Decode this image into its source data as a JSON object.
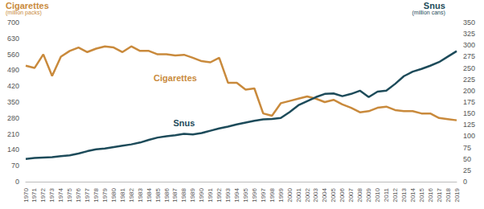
{
  "chart_data": {
    "type": "line",
    "ylabel": "Cigarettes",
    "yunit": "(million packs)",
    "y2label": "Snus",
    "y2unit": "(million cans)",
    "categories": [
      "1970",
      "1971",
      "1972",
      "1973",
      "1974",
      "1975",
      "1976",
      "1977",
      "1978",
      "1979",
      "1980",
      "1981",
      "1982",
      "1983",
      "1984",
      "1985",
      "1986",
      "1987",
      "1988",
      "1989",
      "1990",
      "1991",
      "1992",
      "1993",
      "1994",
      "1995",
      "1996",
      "1997",
      "1998",
      "1999",
      "2000",
      "2001",
      "2002",
      "2003",
      "2004",
      "2005",
      "2006",
      "2007",
      "2008",
      "2009",
      "2010",
      "2011",
      "2012",
      "2013",
      "2014",
      "2015",
      "2016",
      "2017",
      "2018",
      "2019"
    ],
    "series": [
      {
        "name": "Cigarettes",
        "color": "#c98a3c",
        "values": [
          510,
          500,
          560,
          465,
          550,
          575,
          590,
          570,
          585,
          595,
          590,
          570,
          595,
          575,
          575,
          560,
          560,
          555,
          558,
          545,
          530,
          525,
          545,
          435,
          435,
          405,
          410,
          300,
          290,
          345,
          355,
          365,
          375,
          365,
          350,
          360,
          340,
          325,
          305,
          310,
          325,
          330,
          315,
          310,
          310,
          300,
          300,
          280,
          275,
          270
        ]
      },
      {
        "name": "Snus",
        "color": "#1d4b5a",
        "axis": "y2",
        "values": [
          50,
          52,
          53,
          54,
          56,
          58,
          62,
          67,
          71,
          73,
          76,
          79,
          82,
          86,
          92,
          97,
          100,
          102,
          105,
          104,
          107,
          112,
          117,
          121,
          126,
          130,
          134,
          137,
          138,
          140,
          153,
          168,
          177,
          186,
          193,
          194,
          188,
          193,
          200,
          186,
          198,
          200,
          215,
          232,
          242,
          248,
          255,
          263,
          275,
          287
        ]
      }
    ],
    "annotations": [
      {
        "text": "Cigarettes",
        "x": "1987"
      },
      {
        "text": "Snus",
        "x": "1988"
      }
    ],
    "ylim": [
      0,
      700
    ],
    "yticks": [
      0,
      70,
      140,
      210,
      280,
      350,
      420,
      490,
      560,
      630,
      700
    ],
    "y2lim": [
      0,
      350
    ],
    "y2ticks": [
      0,
      25,
      50,
      75,
      100,
      125,
      150,
      175,
      200,
      225,
      250,
      275,
      300,
      325,
      350
    ],
    "grid": false,
    "marker": "none"
  }
}
